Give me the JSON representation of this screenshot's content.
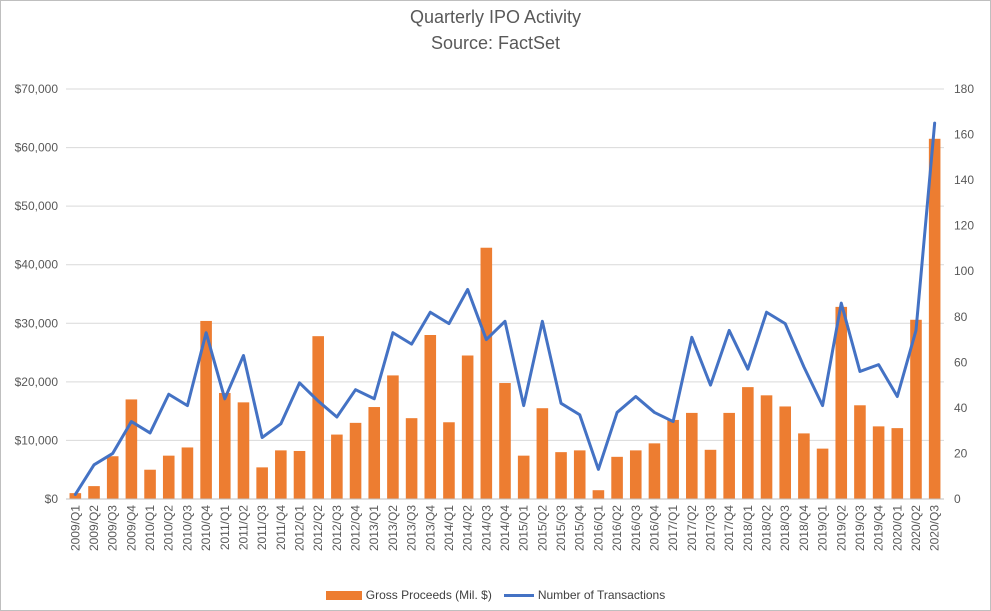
{
  "chart_data": {
    "type": "bar",
    "title": "Quarterly IPO Activity",
    "subtitle": "Source: FactSet",
    "categories": [
      "2009/Q1",
      "2009/Q2",
      "2009/Q3",
      "2009/Q4",
      "2010/Q1",
      "2010/Q2",
      "2010/Q3",
      "2010/Q4",
      "2011/Q1",
      "2011/Q2",
      "2011/Q3",
      "2011/Q4",
      "2012/Q1",
      "2012/Q2",
      "2012/Q3",
      "2012/Q4",
      "2013/Q1",
      "2013/Q2",
      "2013/Q3",
      "2013/Q4",
      "2014/Q1",
      "2014/Q2",
      "2014/Q3",
      "2014/Q4",
      "2015/Q1",
      "2015/Q2",
      "2015/Q3",
      "2015/Q4",
      "2016/Q1",
      "2016/Q2",
      "2016/Q3",
      "2016/Q4",
      "2017/Q1",
      "2017/Q2",
      "2017/Q3",
      "2017/Q4",
      "2018/Q1",
      "2018/Q2",
      "2018/Q3",
      "2018/Q4",
      "2019/Q1",
      "2019/Q2",
      "2019/Q3",
      "2019/Q4",
      "2020/Q1",
      "2020/Q2",
      "2020/Q3"
    ],
    "series": [
      {
        "name": "Gross Proceeds (Mil. $)",
        "type": "bar",
        "axis": "left",
        "color": "#ED7D31",
        "values": [
          1000,
          2200,
          7300,
          17000,
          5000,
          7400,
          8800,
          30400,
          18100,
          16500,
          5400,
          8300,
          8200,
          27800,
          11000,
          13000,
          15700,
          21100,
          13800,
          28000,
          13100,
          24500,
          42900,
          19800,
          7400,
          15500,
          8000,
          8300,
          1500,
          7200,
          8300,
          9500,
          13500,
          14700,
          8400,
          14700,
          19100,
          17700,
          15800,
          11200,
          8600,
          32800,
          16000,
          12400,
          12100,
          30600,
          61500
        ]
      },
      {
        "name": "Number of Transactions",
        "type": "line",
        "axis": "right",
        "color": "#4472C4",
        "values": [
          2,
          15,
          20,
          34,
          29,
          46,
          41,
          73,
          44,
          63,
          27,
          33,
          51,
          43,
          36,
          48,
          44,
          73,
          68,
          82,
          77,
          92,
          70,
          78,
          41,
          78,
          42,
          37,
          13,
          38,
          45,
          38,
          34,
          71,
          50,
          74,
          57,
          82,
          77,
          58,
          41,
          86,
          56,
          59,
          45,
          74,
          165
        ]
      }
    ],
    "y_left": {
      "ticks": [
        "$0",
        "$10,000",
        "$20,000",
        "$30,000",
        "$40,000",
        "$50,000",
        "$60,000",
        "$70,000"
      ],
      "lim": [
        0,
        70000
      ],
      "step": 10000
    },
    "y_right": {
      "ticks": [
        "0",
        "20",
        "40",
        "60",
        "80",
        "100",
        "120",
        "140",
        "160",
        "180"
      ],
      "lim": [
        0,
        180
      ],
      "step": 20
    },
    "grid": true,
    "legend_position": "bottom"
  }
}
